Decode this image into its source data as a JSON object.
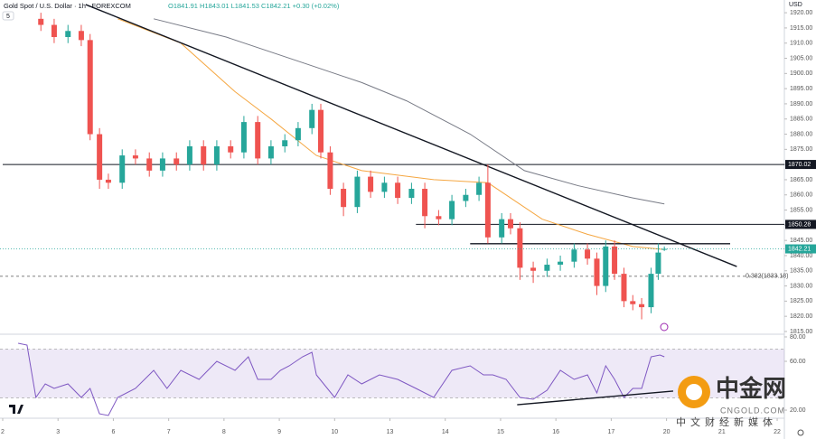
{
  "header": {
    "title": "Gold Spot / U.S. Dollar · 1h · FOREXCOM",
    "ohlc": "O1841.91 H1843.01 L1841.53 C1842.21 +0.30 (+0.02%)",
    "indicator_count": "5",
    "currency": "USD"
  },
  "watermark": {
    "brand": "中金网",
    "site": "CNGOLD.COM",
    "slogan": "中文财经新媒体"
  },
  "chart_data": [
    {
      "type": "candlestick",
      "up_color": "#26a69a",
      "down_color": "#ef5350",
      "xlim": [
        0,
        14.13
      ],
      "ylim": [
        1814.1,
        1924.2
      ],
      "yticks": [
        {
          "value": 1815,
          "label": "1815.00"
        },
        {
          "value": 1820,
          "label": "1820.00"
        },
        {
          "value": 1825,
          "label": "1825.00"
        },
        {
          "value": 1830,
          "label": "1830.00"
        },
        {
          "value": 1835,
          "label": "1835.00"
        },
        {
          "value": 1840,
          "label": "1840.00"
        },
        {
          "value": 1845,
          "label": "1845.00"
        },
        {
          "value": 1850,
          "label": "1850.00"
        },
        {
          "value": 1855,
          "label": "1855.00"
        },
        {
          "value": 1860,
          "label": "1860.00"
        },
        {
          "value": 1865,
          "label": "1865.00"
        },
        {
          "value": 1870,
          "label": "1870.00"
        },
        {
          "value": 1875,
          "label": "1875.00"
        },
        {
          "value": 1880,
          "label": "1880.00"
        },
        {
          "value": 1885,
          "label": "1885.00"
        },
        {
          "value": 1890,
          "label": "1890.00"
        },
        {
          "value": 1895,
          "label": "1895.00"
        },
        {
          "value": 1900,
          "label": "1900.00"
        },
        {
          "value": 1905,
          "label": "1905.00"
        },
        {
          "value": 1910,
          "label": "1910.00"
        },
        {
          "value": 1915,
          "label": "1915.00"
        },
        {
          "value": 1920,
          "label": "1920.00"
        }
      ],
      "candles": {
        "x": [
          0.69,
          0.93,
          1.18,
          1.42,
          1.58,
          1.75,
          1.91,
          2.16,
          2.4,
          2.65,
          2.89,
          3.14,
          3.38,
          3.63,
          3.87,
          4.12,
          4.36,
          4.61,
          4.85,
          5.1,
          5.34,
          5.59,
          5.75,
          5.92,
          6.16,
          6.41,
          6.65,
          6.9,
          7.14,
          7.39,
          7.63,
          7.88,
          8.12,
          8.37,
          8.61,
          8.77,
          9.02,
          9.18,
          9.35,
          9.59,
          9.84,
          10.08,
          10.33,
          10.57,
          10.74,
          10.9,
          11.06,
          11.23,
          11.39,
          11.55,
          11.72,
          11.85,
          11.96
        ],
        "open": [
          1918,
          1916,
          1912,
          1914,
          1911,
          1880,
          1865,
          1864,
          1873,
          1872,
          1868,
          1872,
          1870,
          1876,
          1870,
          1876,
          1874,
          1884,
          1872,
          1876,
          1878,
          1882,
          1888,
          1874,
          1862,
          1856,
          1866,
          1861,
          1864,
          1859,
          1862,
          1853,
          1852,
          1858,
          1860,
          1864,
          1846,
          1852,
          1849,
          1836,
          1835,
          1837,
          1838,
          1842,
          1839,
          1830,
          1843,
          1834,
          1825,
          1824,
          1823,
          1834,
          1841.91
        ],
        "high": [
          1920,
          1918,
          1916,
          1916,
          1913,
          1882,
          1867,
          1875,
          1875,
          1874,
          1874,
          1874,
          1878,
          1878,
          1878,
          1878,
          1886,
          1886,
          1878,
          1880,
          1884,
          1890,
          1890,
          1876,
          1864,
          1868,
          1868,
          1866,
          1866,
          1864,
          1864,
          1855,
          1860,
          1862,
          1866,
          1870,
          1854,
          1854,
          1851,
          1838,
          1839,
          1840,
          1844,
          1844,
          1841,
          1845,
          1845,
          1836,
          1827,
          1826,
          1836,
          1844,
          1843.01
        ],
        "low": [
          1914,
          1910,
          1910,
          1909,
          1878,
          1862,
          1862,
          1862,
          1870,
          1866,
          1866,
          1868,
          1868,
          1868,
          1868,
          1872,
          1872,
          1870,
          1870,
          1874,
          1876,
          1880,
          1872,
          1860,
          1853,
          1854,
          1859,
          1859,
          1857,
          1857,
          1849,
          1850,
          1850,
          1856,
          1858,
          1844,
          1844,
          1847,
          1832,
          1831,
          1833,
          1835,
          1836,
          1837,
          1827,
          1828,
          1832,
          1823,
          1822,
          1819,
          1821,
          1832,
          1841.53
        ],
        "close": [
          1916,
          1912,
          1914,
          1911,
          1880,
          1865,
          1864,
          1873,
          1872,
          1868,
          1872,
          1870,
          1876,
          1870,
          1876,
          1874,
          1884,
          1872,
          1876,
          1878,
          1882,
          1888,
          1874,
          1862,
          1856,
          1866,
          1861,
          1864,
          1859,
          1862,
          1853,
          1852,
          1858,
          1860,
          1864,
          1846,
          1852,
          1849,
          1836,
          1835,
          1837,
          1838,
          1842,
          1839,
          1830,
          1843,
          1834,
          1825,
          1824,
          1823,
          1834,
          1841,
          1842.21
        ]
      },
      "series": [
        {
          "color": "#f5a742",
          "x": [
            2.08,
            3.22,
            4.2,
            4.85,
            5.67,
            6.49,
            7.79,
            8.77,
            9.75,
            10.57,
            11.39,
            11.96
          ],
          "values": [
            1918,
            1910,
            1894,
            1885,
            1873,
            1868,
            1865,
            1864,
            1852,
            1847,
            1843,
            1842
          ]
        },
        {
          "color": "#787b86",
          "x": [
            2.73,
            4.04,
            5.51,
            6.49,
            7.3,
            8.45,
            9.43,
            10.41,
            11.39,
            11.96
          ],
          "values": [
            1918,
            1912,
            1903,
            1897,
            1891,
            1880,
            1868,
            1863,
            1859,
            1857
          ]
        }
      ],
      "lines": [
        {
          "color": "#131722",
          "x": [
            1.5,
            13.27
          ],
          "y": [
            1922.7,
            1836.4
          ]
        },
        {
          "color": "#131722",
          "x": [
            8.45,
            13.15
          ],
          "y": [
            1843.9,
            1843.9
          ]
        }
      ],
      "levels": [
        {
          "value": 1870.02,
          "from": 0
        },
        {
          "value": 1850.28,
          "from": 7.47
        }
      ],
      "fib": {
        "value": 1833.18,
        "label": "0.382(1833.18)"
      }
    },
    {
      "type": "line",
      "xlim": [
        0,
        14.13
      ],
      "ylim": [
        14.1,
        82.2
      ],
      "yticks": [
        {
          "value": 80,
          "label": "80.00"
        },
        {
          "value": 60,
          "label": "60.00"
        },
        {
          "value": 20,
          "label": "20.00"
        }
      ],
      "xticks": [
        {
          "value": 0,
          "label": "2"
        },
        {
          "value": 1,
          "label": "3"
        },
        {
          "value": 2,
          "label": "6"
        },
        {
          "value": 3,
          "label": "7"
        },
        {
          "value": 4,
          "label": "8"
        },
        {
          "value": 5,
          "label": "9"
        },
        {
          "value": 6,
          "label": "10"
        },
        {
          "value": 7,
          "label": "13"
        },
        {
          "value": 8,
          "label": "14"
        },
        {
          "value": 9,
          "label": "15"
        },
        {
          "value": 10,
          "label": "16"
        },
        {
          "value": 11,
          "label": "17"
        },
        {
          "value": 12,
          "label": "20"
        },
        {
          "value": 13,
          "label": "21"
        },
        {
          "value": 14,
          "label": "22"
        }
      ],
      "band": {
        "from": 30,
        "to": 70,
        "color": "#7e57c2"
      },
      "series": [
        {
          "color": "#7e57c2",
          "x": [
            0.28,
            0.44,
            0.6,
            0.77,
            0.93,
            1.18,
            1.42,
            1.58,
            1.75,
            1.91,
            2.08,
            2.4,
            2.73,
            2.97,
            3.22,
            3.55,
            3.87,
            4.2,
            4.44,
            4.61,
            4.85,
            5.02,
            5.18,
            5.42,
            5.59,
            5.67,
            6.0,
            6.24,
            6.49,
            6.81,
            7.14,
            7.47,
            7.79,
            8.12,
            8.45,
            8.69,
            8.86,
            9.1,
            9.35,
            9.59,
            9.84,
            10.08,
            10.33,
            10.57,
            10.74,
            10.9,
            11.06,
            11.23,
            11.39,
            11.55,
            11.72,
            11.88,
            11.96
          ],
          "values": [
            74.8,
            73.3,
            30.4,
            41.5,
            37.8,
            41.5,
            30.4,
            37.8,
            17.0,
            15.6,
            30.4,
            37.8,
            52.6,
            37.8,
            52.6,
            45.2,
            60.0,
            52.6,
            63.7,
            45.2,
            45.2,
            52.6,
            56.3,
            63.7,
            67.4,
            48.9,
            30.4,
            48.9,
            41.5,
            48.9,
            45.2,
            37.8,
            30.4,
            52.6,
            56.3,
            48.9,
            48.9,
            45.2,
            30.4,
            28.9,
            36.3,
            52.6,
            45.2,
            48.9,
            34.1,
            56.3,
            45.2,
            30.4,
            37.8,
            37.8,
            63.7,
            65.2,
            63.7
          ]
        }
      ],
      "lines": [
        {
          "color": "#131722",
          "x": [
            9.3,
            12.12
          ],
          "y": [
            24.4,
            35.6
          ]
        }
      ]
    }
  ]
}
